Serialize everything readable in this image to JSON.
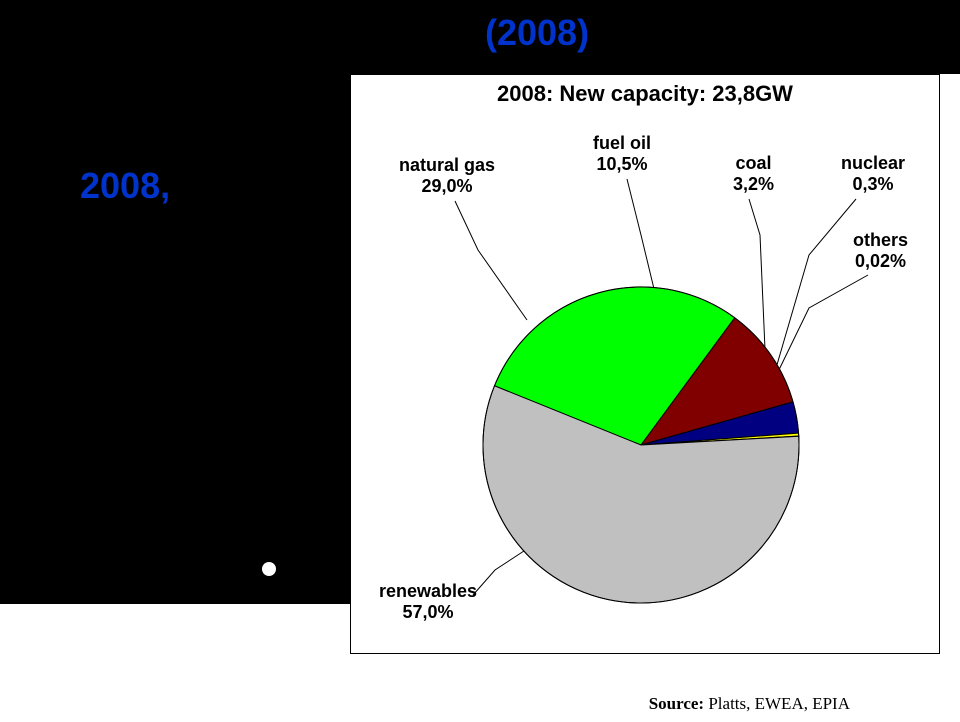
{
  "banner_year_top": "(2008)",
  "banner_year_side": "2008,",
  "chart": {
    "type": "pie",
    "title": "2008: New capacity: 23,8GW",
    "slices": [
      {
        "label_line1": "renewables",
        "label_line2": "57,0%",
        "value": 57.0,
        "color": "#c0c0c0"
      },
      {
        "label_line1": "natural gas",
        "label_line2": "29,0%",
        "value": 29.0,
        "color": "#00ff00"
      },
      {
        "label_line1": "fuel oil",
        "label_line2": "10,5%",
        "value": 10.5,
        "color": "#800000"
      },
      {
        "label_line1": "coal",
        "label_line2": "3,2%",
        "value": 3.2,
        "color": "#000080"
      },
      {
        "label_line1": "nuclear",
        "label_line2": "0,3%",
        "value": 0.3,
        "color": "#ffff00"
      },
      {
        "label_line1": "others",
        "label_line2": "0,02%",
        "value": 0.02,
        "color": "#808000"
      }
    ],
    "border_color": "#000000",
    "background_color": "#ffffff",
    "label_fontsize": 18
  },
  "source_prefix": "Source: ",
  "source_text": "Platts, EWEA, EPIA"
}
